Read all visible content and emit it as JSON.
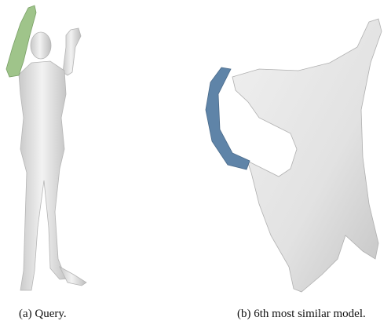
{
  "figure": {
    "subfigures": [
      {
        "caption": "(a) Query."
      },
      {
        "caption": "(b) 6th most similar model."
      }
    ]
  }
}
